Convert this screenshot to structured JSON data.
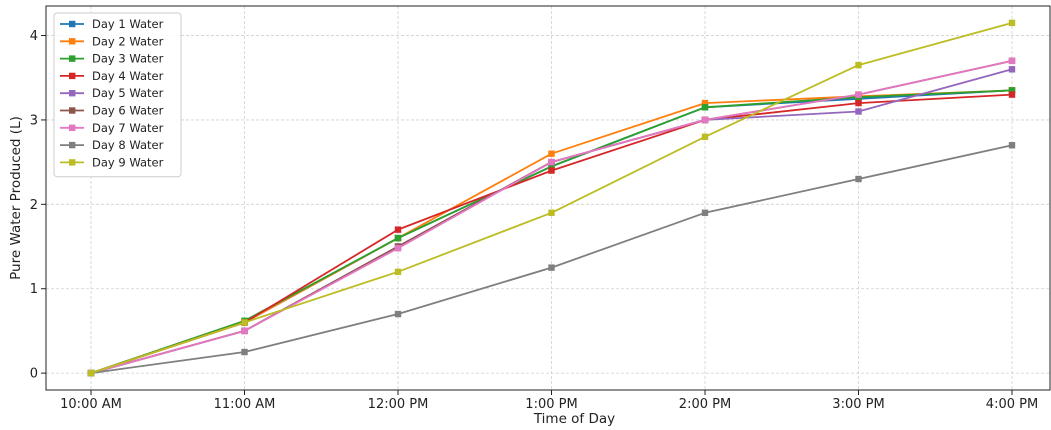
{
  "chart_data": {
    "type": "line",
    "title": "",
    "xlabel": "Time of Day",
    "ylabel": "Pure Water Produced (L)",
    "categories": [
      "10:00 AM",
      "11:00 AM",
      "12:00 PM",
      "1:00 PM",
      "2:00 PM",
      "3:00 PM",
      "4:00 PM"
    ],
    "ylim": [
      -0.2,
      4.35
    ],
    "yticks": [
      0,
      1,
      2,
      3,
      4
    ],
    "grid": true,
    "legend_position": "top-left",
    "marker": "square",
    "series": [
      {
        "name": "Day 1 Water",
        "color": "#1f77b4",
        "values": [
          0,
          0.6,
          1.6,
          2.45,
          3.15,
          3.25,
          3.35
        ]
      },
      {
        "name": "Day 2 Water",
        "color": "#ff7f0e",
        "values": [
          0,
          0.6,
          1.6,
          2.6,
          3.2,
          3.28,
          3.35
        ]
      },
      {
        "name": "Day 3 Water",
        "color": "#2ca02c",
        "values": [
          0,
          0.62,
          1.6,
          2.45,
          3.15,
          3.27,
          3.35
        ]
      },
      {
        "name": "Day 4 Water",
        "color": "#d62728",
        "values": [
          0,
          0.6,
          1.7,
          2.4,
          3.0,
          3.2,
          3.3
        ]
      },
      {
        "name": "Day 5 Water",
        "color": "#9467bd",
        "values": [
          0,
          0.5,
          1.5,
          2.5,
          3.0,
          3.1,
          3.6
        ]
      },
      {
        "name": "Day 6 Water",
        "color": "#8c564b",
        "values": [
          0,
          0.5,
          1.5,
          2.5,
          3.0,
          3.3,
          3.7
        ]
      },
      {
        "name": "Day 7 Water",
        "color": "#e377c2",
        "values": [
          0,
          0.5,
          1.48,
          2.5,
          3.0,
          3.3,
          3.7
        ]
      },
      {
        "name": "Day 8 Water",
        "color": "#7f7f7f",
        "values": [
          0,
          0.25,
          0.7,
          1.25,
          1.9,
          2.3,
          2.7
        ]
      },
      {
        "name": "Day 9 Water",
        "color": "#bcbd22",
        "values": [
          0,
          0.6,
          1.2,
          1.9,
          2.8,
          3.65,
          4.15
        ]
      }
    ]
  }
}
